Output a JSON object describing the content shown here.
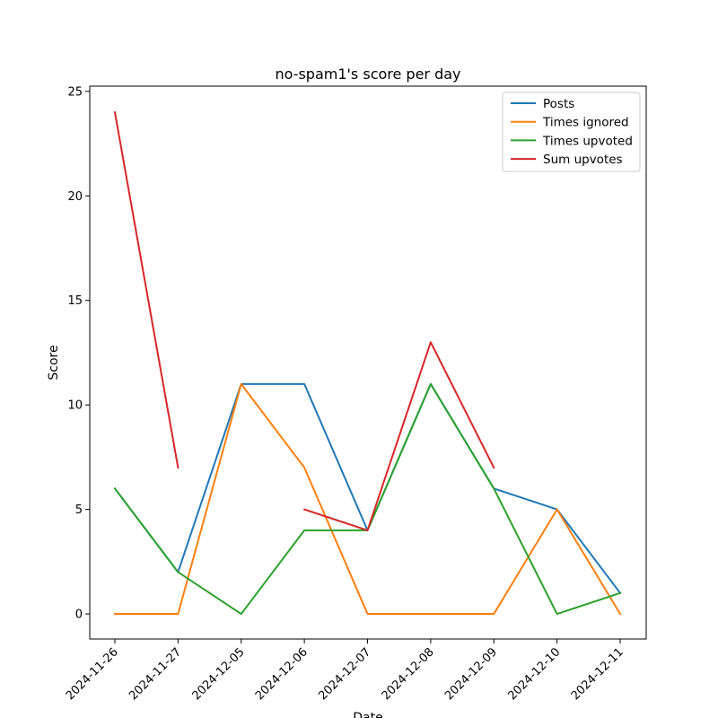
{
  "chart_data": {
    "type": "line",
    "title": "no-spam1's score per day",
    "xlabel": "Date",
    "ylabel": "Score",
    "categories": [
      "2024-11-26",
      "2024-11-27",
      "2024-12-05",
      "2024-12-06",
      "2024-12-07",
      "2024-12-08",
      "2024-12-09",
      "2024-12-10",
      "2024-12-11"
    ],
    "ylim": [
      -1.2,
      25.25
    ],
    "yticks": [
      0,
      5,
      10,
      15,
      20,
      25
    ],
    "grid": false,
    "legend_position": "top-right",
    "series": [
      {
        "name": "Posts",
        "color": "#1f77b4",
        "values": [
          6,
          2,
          11,
          11,
          4,
          11,
          6,
          5,
          1
        ]
      },
      {
        "name": "Times ignored",
        "color": "#ff7f0e",
        "values": [
          0,
          0,
          11,
          7,
          0,
          0,
          0,
          5,
          0
        ]
      },
      {
        "name": "Times upvoted",
        "color": "#2ca02c",
        "values": [
          6,
          2,
          0,
          4,
          4,
          11,
          6,
          0,
          1
        ]
      },
      {
        "name": "Sum upvotes",
        "color": "#d62728",
        "values": [
          24,
          7,
          null,
          5,
          4,
          13,
          7,
          null,
          null
        ]
      }
    ]
  }
}
